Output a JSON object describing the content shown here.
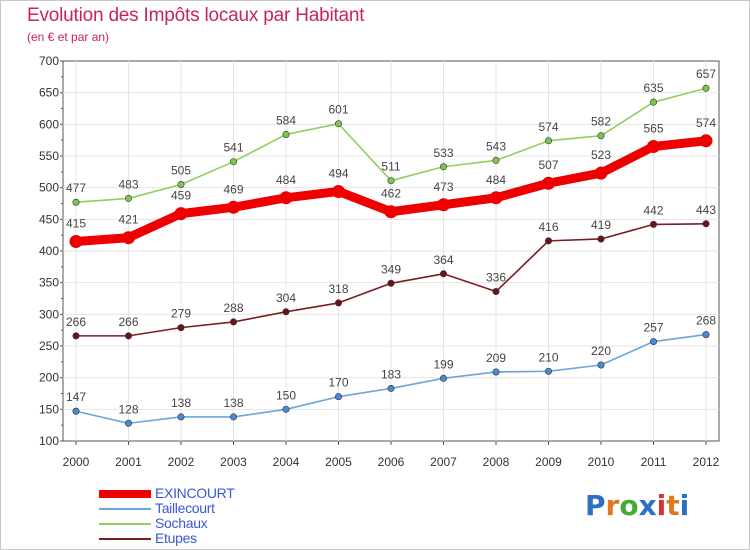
{
  "header": {
    "title": "Evolution des Impôts locaux par Habitant",
    "subtitle": "(en € et par an)"
  },
  "logo": {
    "letters": [
      "P",
      "r",
      "o",
      "x",
      "i",
      "t",
      "i"
    ],
    "colors": [
      "#2c6fc4",
      "#e07a1f",
      "#49a83a",
      "#2c6fc4",
      "#d8342b",
      "#e07a1f",
      "#2c6fc4"
    ]
  },
  "chart_data": {
    "type": "line",
    "title": "Evolution des Impôts locaux par Habitant",
    "subtitle": "(en € et par an)",
    "xlabel": "",
    "ylabel": "",
    "categories": [
      "2000",
      "2001",
      "2002",
      "2003",
      "2004",
      "2005",
      "2006",
      "2007",
      "2008",
      "2009",
      "2010",
      "2011",
      "2012"
    ],
    "ylim": [
      100,
      700
    ],
    "yticks": [
      100,
      150,
      200,
      250,
      300,
      350,
      400,
      450,
      500,
      550,
      600,
      650,
      700
    ],
    "grid": true,
    "legend_position": "bottom-left",
    "series": [
      {
        "name": "Sochaux",
        "color": "#8ed060",
        "markerFill": "#7cc84c",
        "weight": "thin",
        "values": [
          477,
          483,
          505,
          541,
          584,
          601,
          511,
          533,
          543,
          574,
          582,
          635,
          657
        ]
      },
      {
        "name": "Etupes",
        "color": "#7a1e24",
        "markerFill": "#6a1418",
        "weight": "thin",
        "values": [
          266,
          266,
          279,
          288,
          304,
          318,
          349,
          364,
          336,
          416,
          419,
          442,
          443
        ]
      },
      {
        "name": "Taillecourt",
        "color": "#6aa6d8",
        "markerFill": "#4a8ad0",
        "weight": "thin",
        "values": [
          147,
          128,
          138,
          138,
          150,
          170,
          183,
          199,
          209,
          210,
          220,
          257,
          268
        ]
      },
      {
        "name": "EXINCOURT",
        "color": "#ee0000",
        "markerFill": "#ee0000",
        "weight": "thick",
        "values": [
          415,
          421,
          459,
          469,
          484,
          494,
          462,
          473,
          484,
          507,
          523,
          565,
          574
        ]
      }
    ],
    "legend": [
      {
        "name": "EXINCOURT",
        "color": "#ee0000"
      },
      {
        "name": "Taillecourt",
        "color": "#6aa6d8"
      },
      {
        "name": "Sochaux",
        "color": "#8ed060"
      },
      {
        "name": "Etupes",
        "color": "#7a1e24"
      }
    ]
  }
}
